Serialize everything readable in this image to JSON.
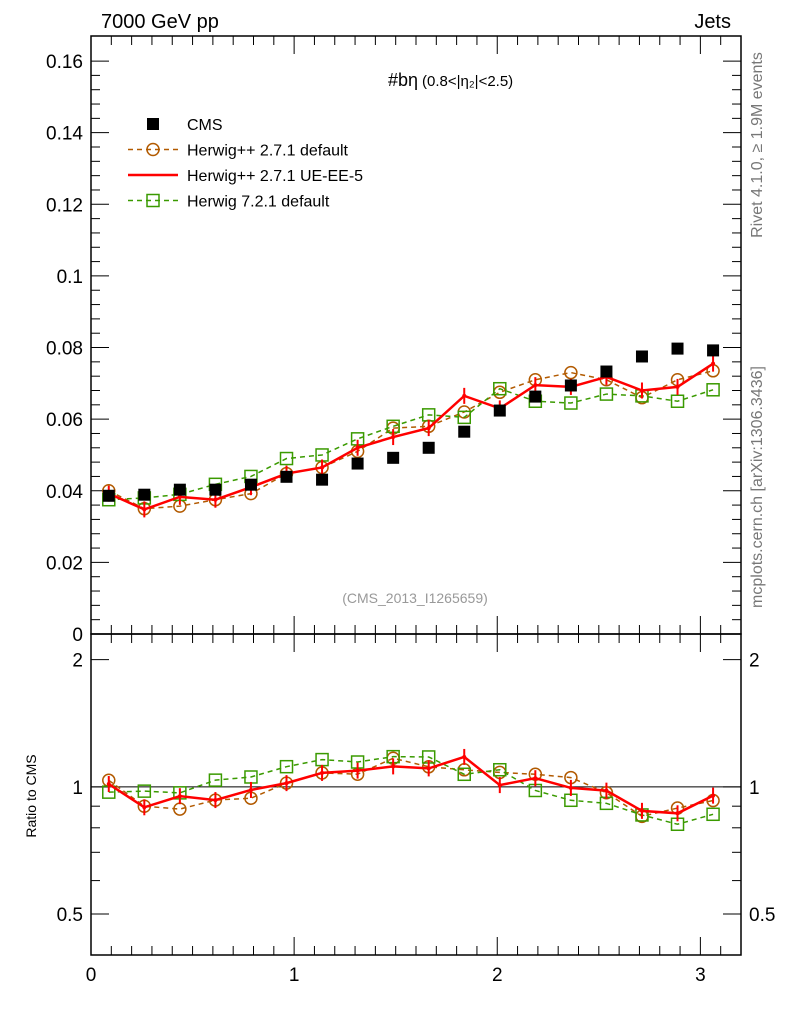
{
  "header": {
    "left": "7000 GeV pp",
    "right": "Jets"
  },
  "side": {
    "rivet": "Rivet 4.1.0, ≥ 1.9M events",
    "mcplots": "mcplots.cern.ch [arXiv:1306.3436]"
  },
  "watermark": "(CMS_2013_I1265659)",
  "chart_data": {
    "type": "line",
    "title": "#bη",
    "subtitle": "(0.8<|η₂|<2.5)",
    "xlim": [
      0,
      3.2
    ],
    "ylim": [
      0,
      0.167
    ],
    "x_ticks": [
      "0",
      "1",
      "2",
      "3"
    ],
    "y_ticks": [
      "0",
      "0.02",
      "0.04",
      "0.06",
      "0.08",
      "0.1",
      "0.12",
      "0.14",
      "0.16"
    ],
    "ratio": {
      "ylabel": "Ratio to CMS",
      "ylim": [
        0.4,
        2.3
      ],
      "scale": "log",
      "ticks": [
        "0.5",
        "1",
        "2"
      ]
    },
    "x": [
      0.0875,
      0.2625,
      0.4375,
      0.6125,
      0.7875,
      0.9625,
      1.1375,
      1.3125,
      1.4875,
      1.6625,
      1.8375,
      2.0125,
      2.1875,
      2.3625,
      2.5375,
      2.7125,
      2.8875,
      3.0625
    ],
    "series": [
      {
        "name": "CMS",
        "color": "#000000",
        "marker": "square-filled",
        "values": [
          0.0386,
          0.0389,
          0.0403,
          0.0403,
          0.0417,
          0.0439,
          0.0431,
          0.0476,
          0.0492,
          0.052,
          0.0565,
          0.0624,
          0.0663,
          0.0694,
          0.0733,
          0.0775,
          0.0797,
          0.0792
        ]
      },
      {
        "name": "Herwig++ 2.7.1 default",
        "color": "#b25a00",
        "marker": "circle-open",
        "dash": true,
        "values": [
          0.04,
          0.035,
          0.0357,
          0.0375,
          0.0392,
          0.0448,
          0.0465,
          0.051,
          0.0575,
          0.058,
          0.062,
          0.0675,
          0.071,
          0.073,
          0.071,
          0.066,
          0.071,
          0.0735
        ]
      },
      {
        "name": "Herwig++ 2.7.1 UE-EE-5",
        "color": "#ff0000",
        "marker": "line",
        "dash": false,
        "values": [
          0.0392,
          0.0348,
          0.0383,
          0.0375,
          0.041,
          0.0448,
          0.0465,
          0.052,
          0.055,
          0.0575,
          0.0665,
          0.063,
          0.0695,
          0.069,
          0.0718,
          0.068,
          0.069,
          0.0755
        ]
      },
      {
        "name": "Herwig 7.2.1 default",
        "color": "#3a9a00",
        "marker": "square-open",
        "dash": true,
        "values": [
          0.0375,
          0.038,
          0.039,
          0.0418,
          0.044,
          0.049,
          0.05,
          0.0545,
          0.058,
          0.0612,
          0.0605,
          0.0685,
          0.065,
          0.0645,
          0.067,
          0.0665,
          0.065,
          0.0682
        ]
      }
    ]
  }
}
